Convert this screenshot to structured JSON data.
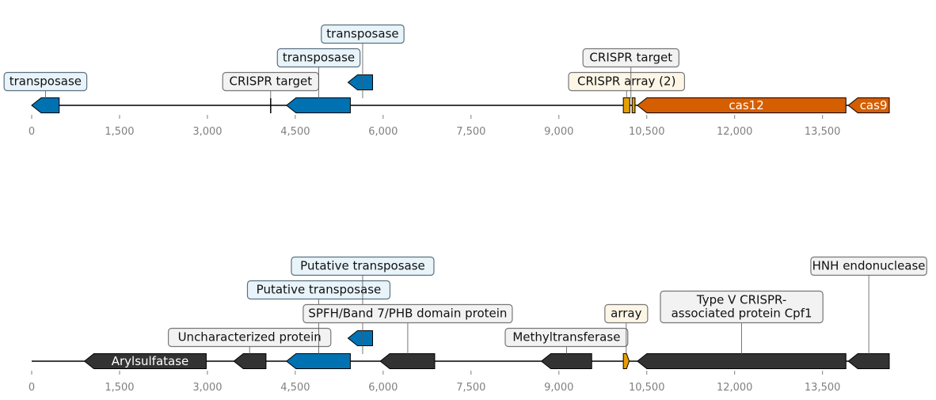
{
  "colors": {
    "transposase": "#0072b2",
    "cas": "#d55e00",
    "array": "#e69f00",
    "other": "#333333",
    "box_transposase_bg": "#e8f4fa",
    "box_transposase_border": "#5a7080",
    "box_crispr_bg": "#f2f2f2",
    "box_array_bg": "#fdf6e6",
    "box_grey_border": "#777777",
    "axis": "#000000",
    "tick_label": "#808080"
  },
  "axis_ticks": [
    {
      "value": 0,
      "label": "0"
    },
    {
      "value": 1500,
      "label": "1,500"
    },
    {
      "value": 3000,
      "label": "3,000"
    },
    {
      "value": 4500,
      "label": "4,500"
    },
    {
      "value": 6000,
      "label": "6,000"
    },
    {
      "value": 7500,
      "label": "7,500"
    },
    {
      "value": 9000,
      "label": "9,000"
    },
    {
      "value": 10500,
      "label": "10,500"
    },
    {
      "value": 12000,
      "label": "12,000"
    },
    {
      "value": 13500,
      "label": "13,500"
    }
  ],
  "tracks": [
    {
      "length": 14640,
      "features": [
        {
          "start": 0,
          "end": 470,
          "strand": -1,
          "kind": "transposase",
          "name": ""
        },
        {
          "start": 4350,
          "end": 5440,
          "strand": -1,
          "kind": "transposase",
          "name": ""
        },
        {
          "start": 5400,
          "end": 5820,
          "strand": -1,
          "kind": "transposase",
          "name": "",
          "lane": 1
        },
        {
          "start": 10100,
          "end": 10210,
          "strand": 0,
          "kind": "array",
          "name": ""
        },
        {
          "start": 10250,
          "end": 10300,
          "strand": 0,
          "kind": "array",
          "name": ""
        },
        {
          "start": 10340,
          "end": 13900,
          "strand": -1,
          "kind": "cas",
          "name": "cas12"
        },
        {
          "start": 13940,
          "end": 14640,
          "strand": -1,
          "kind": "cas",
          "name": "cas9"
        }
      ],
      "markers": [
        {
          "pos": 4080
        }
      ],
      "labels": [
        {
          "text": "transposase",
          "at": 235,
          "level": 0,
          "style": "transposase"
        },
        {
          "text": "CRISPR target",
          "at": 4080,
          "level": 0,
          "style": "crispr"
        },
        {
          "text": "transposase",
          "at": 4900,
          "level": 1,
          "style": "transposase"
        },
        {
          "text": "transposase",
          "at": 5650,
          "level": 2,
          "style": "transposase"
        },
        {
          "text": "CRISPR array (2)",
          "at": 10155,
          "level": 0,
          "style": "array"
        },
        {
          "text": "CRISPR target",
          "at": 10230,
          "level": 1,
          "style": "crispr"
        }
      ]
    },
    {
      "length": 14640,
      "features": [
        {
          "start": 900,
          "end": 2980,
          "strand": -1,
          "kind": "other",
          "name": "Arylsulfatase"
        },
        {
          "start": 3450,
          "end": 4000,
          "strand": -1,
          "kind": "other",
          "name": ""
        },
        {
          "start": 4350,
          "end": 5440,
          "strand": -1,
          "kind": "transposase",
          "name": ""
        },
        {
          "start": 5400,
          "end": 5820,
          "strand": -1,
          "kind": "transposase",
          "name": "",
          "lane": 1
        },
        {
          "start": 5950,
          "end": 6880,
          "strand": -1,
          "kind": "other",
          "name": ""
        },
        {
          "start": 8700,
          "end": 9560,
          "strand": -1,
          "kind": "other",
          "name": ""
        },
        {
          "start": 10100,
          "end": 10200,
          "strand": 1,
          "kind": "array",
          "name": ""
        },
        {
          "start": 10340,
          "end": 13900,
          "strand": -1,
          "kind": "other",
          "name": ""
        },
        {
          "start": 13940,
          "end": 14640,
          "strand": -1,
          "kind": "other",
          "name": ""
        }
      ],
      "markers": [],
      "labels": [
        {
          "text": "Uncharacterized protein",
          "at": 3720,
          "level": 0,
          "style": "crispr"
        },
        {
          "text": "Putative transposase",
          "at": 4900,
          "level": 2,
          "style": "transposase"
        },
        {
          "text": "Putative transposase",
          "at": 5650,
          "level": 3,
          "style": "transposase"
        },
        {
          "text": "SPFH/Band 7/PHB domain protein",
          "at": 6420,
          "level": 1,
          "style": "crispr"
        },
        {
          "text": "Methyltransferase",
          "at": 9130,
          "level": 0,
          "style": "crispr"
        },
        {
          "text": "array",
          "at": 10150,
          "level": 1,
          "style": "array"
        },
        {
          "text": "Type V CRISPR-\nassociated protein Cpf1",
          "at": 12120,
          "level": 1,
          "style": "crispr",
          "lines": 2
        },
        {
          "text": "HNH endonuclease",
          "at": 14290,
          "level": 3,
          "style": "crispr"
        }
      ]
    }
  ]
}
